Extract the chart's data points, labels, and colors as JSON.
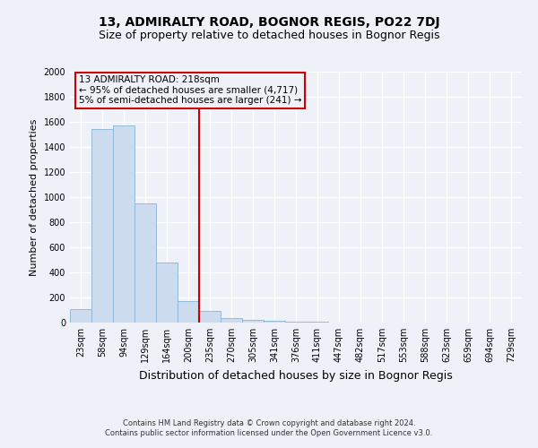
{
  "title": "13, ADMIRALTY ROAD, BOGNOR REGIS, PO22 7DJ",
  "subtitle": "Size of property relative to detached houses in Bognor Regis",
  "xlabel": "Distribution of detached houses by size in Bognor Regis",
  "ylabel": "Number of detached properties",
  "bar_color": "#ccdcee",
  "bar_edge_color": "#8ab4d4",
  "categories": [
    "23sqm",
    "58sqm",
    "94sqm",
    "129sqm",
    "164sqm",
    "200sqm",
    "235sqm",
    "270sqm",
    "305sqm",
    "341sqm",
    "376sqm",
    "411sqm",
    "447sqm",
    "482sqm",
    "517sqm",
    "553sqm",
    "588sqm",
    "623sqm",
    "659sqm",
    "694sqm",
    "729sqm"
  ],
  "values": [
    110,
    1540,
    1570,
    950,
    480,
    175,
    95,
    35,
    20,
    15,
    5,
    5,
    2,
    1,
    1,
    0,
    0,
    0,
    0,
    0,
    0
  ],
  "vline_x": 6.0,
  "vline_color": "#cc0000",
  "annotation_line1": "13 ADMIRALTY ROAD: 218sqm",
  "annotation_line2": "← 95% of detached houses are smaller (4,717)",
  "annotation_line3": "5% of semi-detached houses are larger (241) →",
  "annotation_box_color": "#cc0000",
  "ylim": [
    0,
    2000
  ],
  "yticks": [
    0,
    200,
    400,
    600,
    800,
    1000,
    1200,
    1400,
    1600,
    1800,
    2000
  ],
  "footer": "Contains HM Land Registry data © Crown copyright and database right 2024.\nContains public sector information licensed under the Open Government Licence v3.0.",
  "bg_color": "#eef2f8",
  "grid_color": "#ffffff",
  "title_fontsize": 10,
  "subtitle_fontsize": 9,
  "xlabel_fontsize": 9,
  "ylabel_fontsize": 8,
  "tick_fontsize": 7,
  "footer_fontsize": 6,
  "annotation_fontsize": 7.5
}
